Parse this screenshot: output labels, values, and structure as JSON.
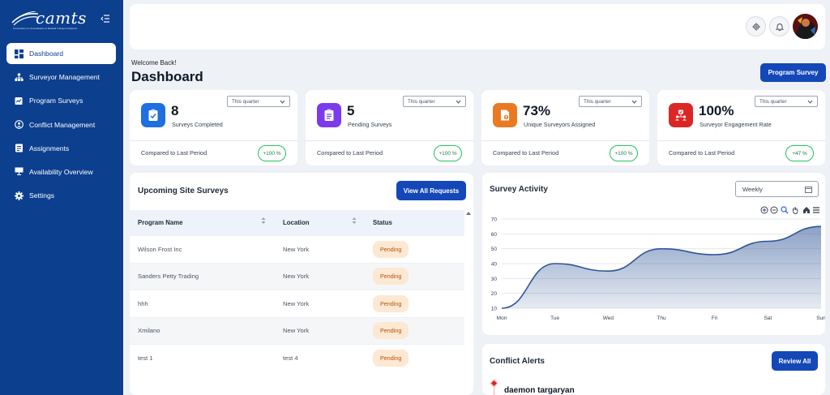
{
  "brand": {
    "logo_text": "camts",
    "logo_sub": "Commission on Accreditation of Medical Transport Systems"
  },
  "sidebar": {
    "items": [
      {
        "label": "Dashboard",
        "icon": "dashboard-icon",
        "active": true
      },
      {
        "label": "Surveyor Management",
        "icon": "org-chart-icon"
      },
      {
        "label": "Program Surveys",
        "icon": "program-surveys-icon"
      },
      {
        "label": "Conflict Management",
        "icon": "conflict-icon"
      },
      {
        "label": "Assignments",
        "icon": "assignments-icon"
      },
      {
        "label": "Availability Overview",
        "icon": "availability-icon"
      },
      {
        "label": "Settings",
        "icon": "gear-icon"
      }
    ]
  },
  "header": {
    "welcome": "Welcome Back!",
    "title": "Dashboard",
    "program_button": "Program Survey"
  },
  "colors": {
    "primary": "#1447b8",
    "sidebar": "#0d3f8f",
    "badge_green": "#22c55e",
    "pending_bg": "#fde8d3"
  },
  "stats": [
    {
      "value": "8",
      "label": "Surveys Completed",
      "period": "This quarter",
      "compare": "Compared to Last Period",
      "change": "+100 %",
      "icon": "clipboard-check-icon",
      "color": "#1e6fe0"
    },
    {
      "value": "5",
      "label": "Pending Surveys",
      "period": "This quarter",
      "compare": "Compared to Last Period",
      "change": "+100 %",
      "icon": "clipboard-list-icon",
      "color": "#7c3aed"
    },
    {
      "value": "73%",
      "label": "Unique Surveyors Assigned",
      "period": "This quarter",
      "compare": "Compared to Last Period",
      "change": "+100 %",
      "icon": "document-user-icon",
      "color": "#ea7a22"
    },
    {
      "value": "100%",
      "label": "Surveyor Engagement Rate",
      "period": "This quarter",
      "compare": "Compared to Last Period",
      "change": "+47 %",
      "icon": "engagement-icon",
      "color": "#dc2626"
    }
  ],
  "upcoming": {
    "title": "Upcoming Site Surveys",
    "view_button": "View All Requests",
    "columns": [
      "Program Name",
      "Location",
      "Status"
    ],
    "rows": [
      {
        "name": "Wilson Frost Inc",
        "location": "New York",
        "status": "Pending"
      },
      {
        "name": "Sanders Petty Trading",
        "location": "New York",
        "status": "Pending"
      },
      {
        "name": "hhh",
        "location": "New York",
        "status": "Pending"
      },
      {
        "name": "Xmilano",
        "location": "New York",
        "status": "Pending"
      },
      {
        "name": "test 1",
        "location": "test 4",
        "status": "Pending"
      }
    ]
  },
  "activity": {
    "title": "Survey Activity",
    "range": "Weekly",
    "toolbar": [
      "zoom-in-icon",
      "zoom-out-icon",
      "zoom-select-icon",
      "pan-hand-icon",
      "home-icon",
      "menu-icon"
    ]
  },
  "chart_data": {
    "type": "area",
    "categories": [
      "Mon",
      "Tue",
      "Wed",
      "Thu",
      "Fri",
      "Sat",
      "Sun"
    ],
    "series": [
      {
        "values": [
          10,
          40,
          35,
          50,
          46,
          55,
          65
        ]
      }
    ],
    "yticks": [
      10,
      20,
      30,
      40,
      50,
      60,
      70
    ],
    "ylim": [
      10,
      70
    ],
    "grid": true,
    "color": "#2f5597"
  },
  "conflict": {
    "title": "Conflict Alerts",
    "review_button": "Review All",
    "first_name": "daemon targaryan"
  }
}
